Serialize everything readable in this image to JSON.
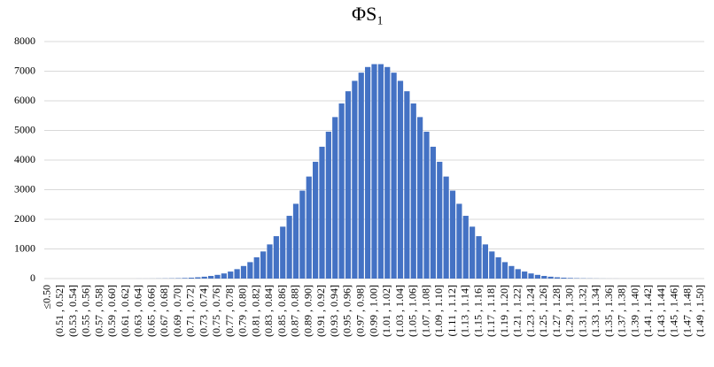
{
  "chart_data": {
    "type": "bar",
    "title": "ΦS₁",
    "categories": [
      "≤0.50",
      null,
      "(0.51 , 0.52]",
      null,
      "(0.53 , 0.54]",
      null,
      "(0.55 , 0.56]",
      null,
      "(0.57 , 0.58]",
      null,
      "(0.59 , 0.60]",
      null,
      "(0.61 , 0.62]",
      null,
      "(0.63 , 0.64]",
      null,
      "(0.65 , 0.66]",
      null,
      "(0.67 , 0.68]",
      null,
      "(0.69 , 0.70]",
      null,
      "(0.71 , 0.72]",
      null,
      "(0.73 , 0.74]",
      null,
      "(0.75 , 0.76]",
      null,
      "(0.77 , 0.78]",
      null,
      "(0.79 , 0.80]",
      null,
      "(0.81 , 0.82]",
      null,
      "(0.83 , 0.84]",
      null,
      "(0.85 , 0.86]",
      null,
      "(0.87 , 0.88]",
      null,
      "(0.89 , 0.90]",
      null,
      "(0.91 , 0.92]",
      null,
      "(0.93 , 0.94]",
      null,
      "(0.95 , 0.96]",
      null,
      "(0.97 , 0.98]",
      null,
      "(0.99 , 1.00]",
      null,
      "(1.01 , 1.02]",
      null,
      "(1.03 , 1.04]",
      null,
      "(1.05 , 1.06]",
      null,
      "(1.07 , 1.08]",
      null,
      "(1.09 , 1.10]",
      null,
      "(1.11 , 1.12]",
      null,
      "(1.13 , 1.14]",
      null,
      "(1.15 , 1.16]",
      null,
      "(1.17 , 1.18]",
      null,
      "(1.19 , 1.20]",
      null,
      "(1.21 , 1.22]",
      null,
      "(1.23 , 1.24]",
      null,
      "(1.25 , 1.26]",
      null,
      "(1.27 , 1.28]",
      null,
      "(1.29 , 1.30]",
      null,
      "(1.31 , 1.32]",
      null,
      "(1.33 , 1.34]",
      null,
      "(1.35 , 1.36]",
      null,
      "(1.37 , 1.38]",
      null,
      "(1.39 , 1.40]",
      null,
      "(1.41 , 1.42]",
      null,
      "(1.43 , 1.44]",
      null,
      "(1.45 , 1.46]",
      null,
      "(1.47 , 1.48]",
      null,
      "(1.49 , 1.50]"
    ],
    "values": [
      0,
      0,
      0,
      0,
      0,
      0,
      0,
      0,
      0,
      0,
      0,
      0,
      0,
      0,
      1,
      1,
      2,
      4,
      6,
      9,
      13,
      20,
      30,
      43,
      63,
      89,
      125,
      173,
      237,
      318,
      424,
      555,
      718,
      915,
      1153,
      1431,
      1752,
      2118,
      2524,
      2968,
      3444,
      3942,
      4450,
      4958,
      5451,
      5910,
      6323,
      6674,
      6950,
      7141,
      7238,
      7238,
      7141,
      6950,
      6674,
      6323,
      5910,
      5451,
      4958,
      4450,
      3942,
      3444,
      2968,
      2524,
      2118,
      1752,
      1431,
      1153,
      915,
      718,
      555,
      424,
      318,
      237,
      173,
      125,
      89,
      63,
      43,
      30,
      20,
      13,
      9,
      6,
      4,
      2,
      1,
      1,
      0,
      0,
      0,
      0,
      0,
      0,
      0,
      0,
      0,
      0,
      0,
      0,
      0
    ],
    "color": "#4472c4",
    "ylim": [
      0,
      8000
    ],
    "yticks": [
      0,
      1000,
      2000,
      3000,
      4000,
      5000,
      6000,
      7000,
      8000
    ],
    "grid": true
  }
}
